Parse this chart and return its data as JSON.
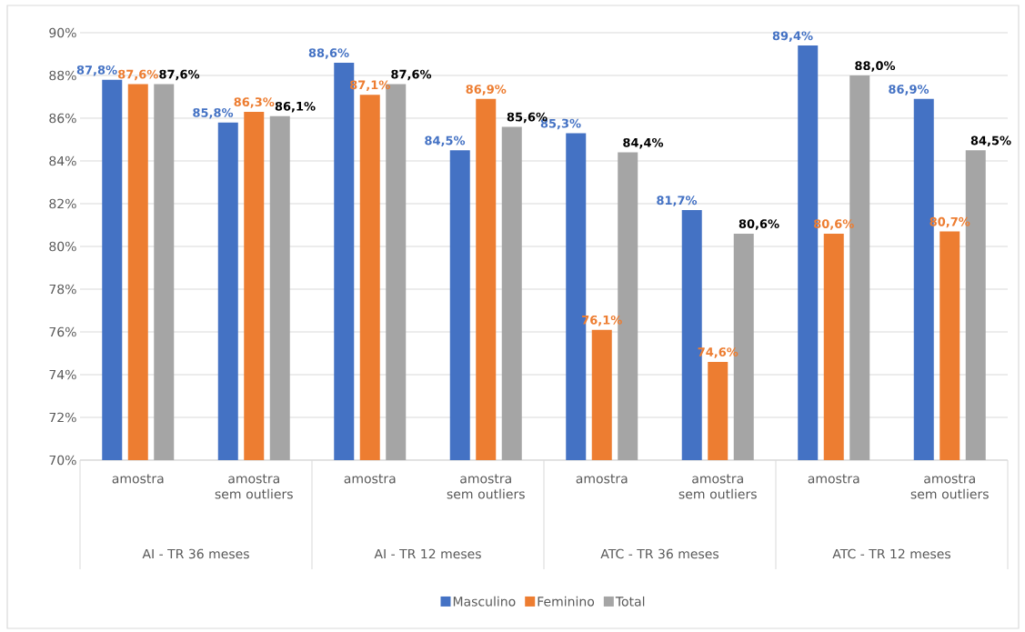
{
  "chart_data": {
    "type": "bar",
    "categories": [
      "amostra",
      "amostra sem outliers",
      "amostra",
      "amostra sem outliers",
      "amostra",
      "amostra sem outliers",
      "amostra",
      "amostra sem outliers"
    ],
    "annotations": [
      "AI - TR 36 meses",
      "AI - TR 12 meses",
      "ATC - TR 36 meses",
      "ATC - TR 12 meses"
    ],
    "series": [
      {
        "name": "Masculino",
        "color": "#4472c4",
        "values": [
          87.8,
          85.8,
          88.6,
          84.5,
          85.3,
          81.7,
          89.4,
          86.9
        ],
        "value_labels": [
          "87,8%",
          "85,8%",
          "88,6%",
          "84,5%",
          "85,3%",
          "81,7%",
          "89,4%",
          "86,9%"
        ]
      },
      {
        "name": "Feminino",
        "color": "#ed7d31",
        "values": [
          87.6,
          86.3,
          87.1,
          86.9,
          76.1,
          74.6,
          80.6,
          80.7
        ],
        "value_labels": [
          "87,6%",
          "86,3%",
          "87,1%",
          "86,9%",
          "76,1%",
          "74,6%",
          "80,6%",
          "80,7%"
        ]
      },
      {
        "name": "Total",
        "color": "#a5a5a5",
        "values": [
          87.6,
          86.1,
          87.6,
          85.6,
          84.4,
          80.6,
          88.0,
          84.5
        ],
        "value_labels": [
          "87,6%",
          "86,1%",
          "87,6%",
          "85,6%",
          "84,4%",
          "80,6%",
          "88,0%",
          "84,5%"
        ]
      }
    ],
    "ylim": [
      70,
      90
    ],
    "yticks": [
      {
        "value": 70,
        "label": "70%"
      },
      {
        "value": 72,
        "label": "72%"
      },
      {
        "value": 74,
        "label": "74%"
      },
      {
        "value": 76,
        "label": "76%"
      },
      {
        "value": 78,
        "label": "78%"
      },
      {
        "value": 80,
        "label": "80%"
      },
      {
        "value": 82,
        "label": "82%"
      },
      {
        "value": 84,
        "label": "84%"
      },
      {
        "value": 86,
        "label": "86%"
      },
      {
        "value": 88,
        "label": "88%"
      },
      {
        "value": 90,
        "label": "90%"
      }
    ],
    "grid": "y",
    "legend": "bottom"
  }
}
